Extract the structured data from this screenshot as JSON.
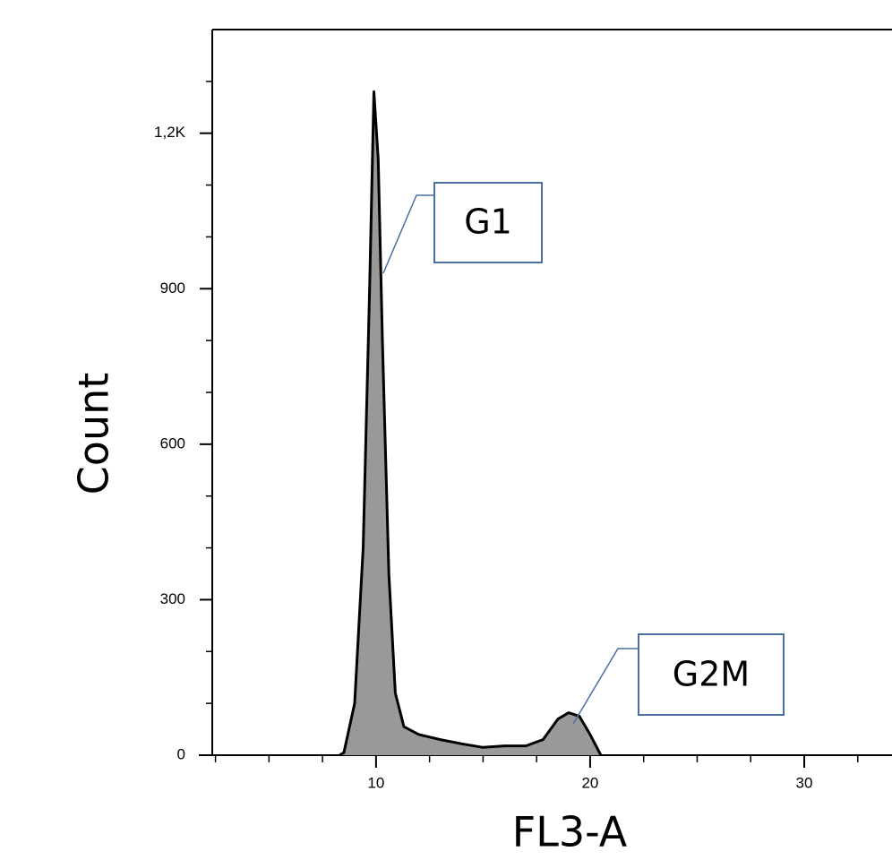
{
  "chart_data": {
    "type": "area",
    "x_label": "FL3-A",
    "y_label": "Count",
    "x": [
      8.3,
      8.5,
      9.0,
      9.4,
      9.7,
      9.9,
      10.1,
      10.3,
      10.6,
      10.9,
      11.3,
      12,
      13,
      14,
      15,
      16,
      17,
      17.8,
      18.5,
      19,
      19.5,
      20,
      20.5
    ],
    "values": [
      0,
      5,
      100,
      400,
      900,
      1280,
      1150,
      800,
      350,
      120,
      55,
      40,
      30,
      22,
      15,
      18,
      18,
      30,
      70,
      82,
      75,
      40,
      0
    ],
    "color": "#999999",
    "xlim": [
      2.35,
      34.1
    ],
    "ylim": [
      0,
      1400
    ],
    "xticks": [
      10,
      20,
      30
    ],
    "yticks": [
      0,
      300,
      600,
      900,
      {
        "value": 1200,
        "label": "1,2K"
      }
    ],
    "xminorticks": [
      2.5,
      5,
      7.5,
      12.5,
      15,
      17.5,
      22.5,
      25,
      27.5,
      32.5
    ],
    "yminorticks": [
      100,
      200,
      400,
      500,
      700,
      800,
      1000,
      1100,
      1300
    ],
    "annotations": [
      {
        "text": "G1"
      },
      {
        "text": "G2M"
      }
    ]
  }
}
